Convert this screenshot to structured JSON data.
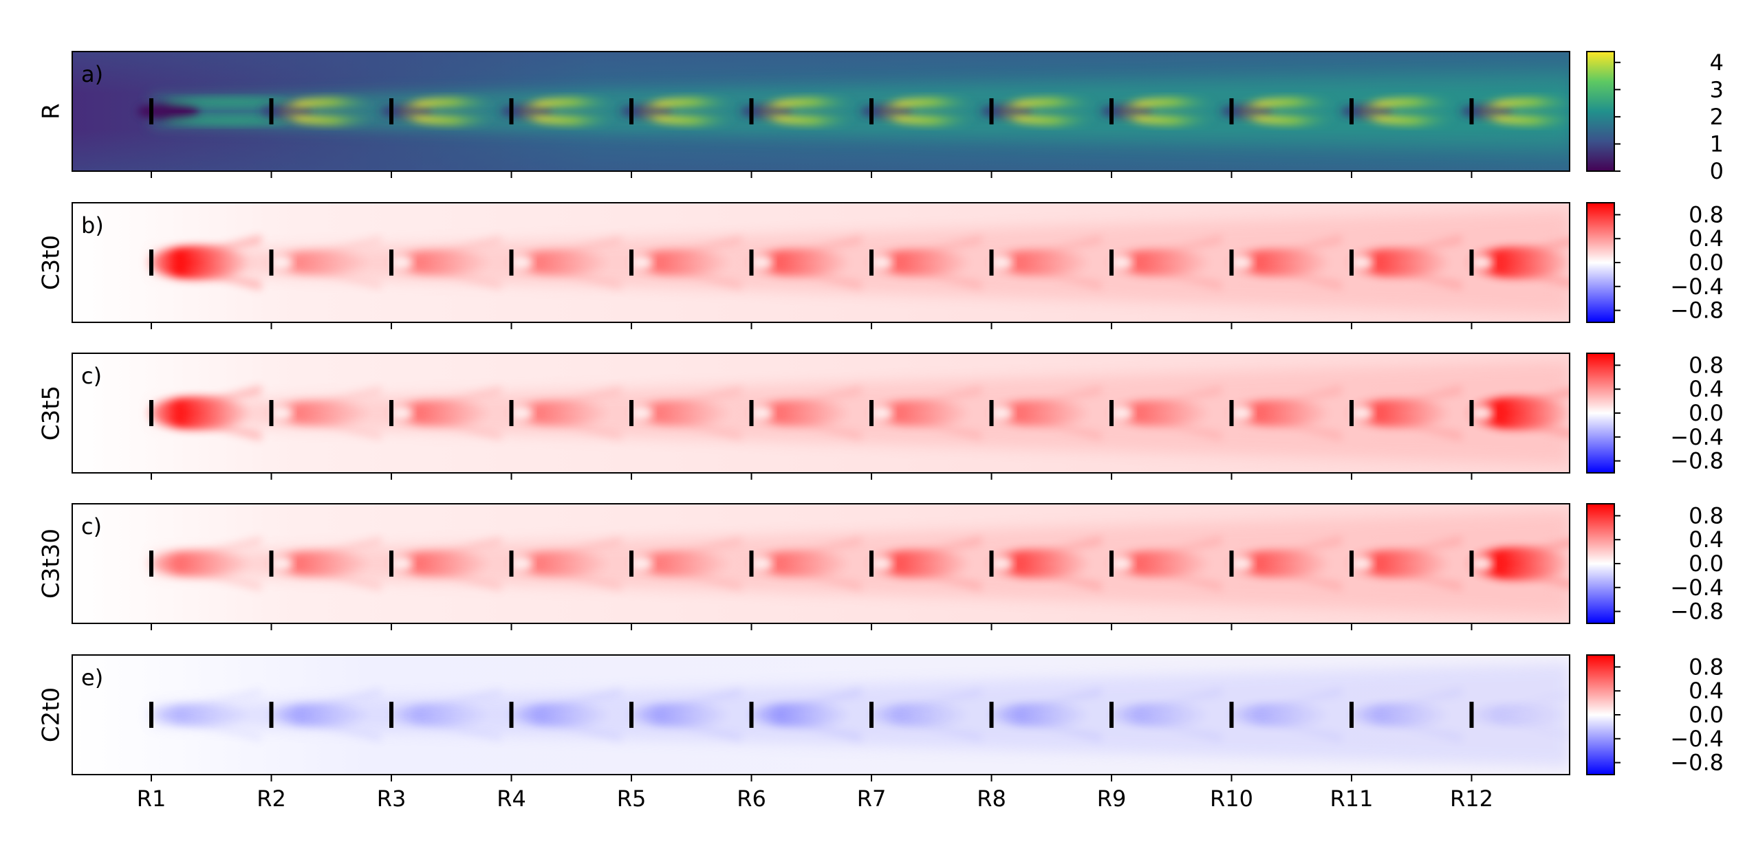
{
  "chart_data": [
    {
      "type": "heatmap",
      "panel_label": "a)",
      "ylabel": "R",
      "colormap": "viridis",
      "colorbar_ticks": [
        "0",
        "1",
        "2",
        "3",
        "4"
      ],
      "colorbar_range": [
        0,
        4.4
      ],
      "colorbar_tick_values": [
        0,
        1,
        2,
        3,
        4
      ],
      "rotor_labels": [
        "R1",
        "R2",
        "R3",
        "R4",
        "R5",
        "R6",
        "R7",
        "R8",
        "R9",
        "R10",
        "R11",
        "R12"
      ],
      "x_tick_labels_visible": false
    },
    {
      "type": "heatmap",
      "panel_label": "b)",
      "ylabel": "C3t0",
      "colormap": "bwr",
      "colorbar_ticks": [
        "0.8",
        "0.4",
        "0.0",
        "−0.4",
        "−0.8"
      ],
      "colorbar_tick_values": [
        0.8,
        0.4,
        0.0,
        -0.4,
        -0.8
      ],
      "colorbar_range": [
        -1,
        1
      ],
      "wake_strength": [
        1.0,
        0.35,
        0.4,
        0.4,
        0.45,
        0.55,
        0.5,
        0.45,
        0.5,
        0.55,
        0.65,
        0.85
      ],
      "x_tick_labels_visible": false
    },
    {
      "type": "heatmap",
      "panel_label": "c)",
      "ylabel": "C3t5",
      "colormap": "bwr",
      "colorbar_ticks": [
        "0.8",
        "0.4",
        "0.0",
        "−0.4",
        "−0.8"
      ],
      "colorbar_tick_values": [
        0.8,
        0.4,
        0.0,
        -0.4,
        -0.8
      ],
      "colorbar_range": [
        -1,
        1
      ],
      "wake_strength": [
        0.95,
        0.4,
        0.45,
        0.4,
        0.4,
        0.45,
        0.45,
        0.45,
        0.45,
        0.5,
        0.6,
        0.95
      ],
      "x_tick_labels_visible": false
    },
    {
      "type": "heatmap",
      "panel_label": "c)",
      "ylabel": "C3t30",
      "colormap": "bwr",
      "colorbar_ticks": [
        "0.8",
        "0.4",
        "0.0",
        "−0.4",
        "−0.8"
      ],
      "colorbar_tick_values": [
        0.8,
        0.4,
        0.0,
        -0.4,
        -0.8
      ],
      "colorbar_range": [
        -1,
        1
      ],
      "wake_strength": [
        0.5,
        0.45,
        0.45,
        0.4,
        0.4,
        0.45,
        0.6,
        0.65,
        0.5,
        0.55,
        0.6,
        0.95
      ],
      "x_tick_labels_visible": false
    },
    {
      "type": "heatmap",
      "panel_label": "e)",
      "ylabel": "C2t0",
      "colormap": "bwr",
      "colorbar_ticks": [
        "0.8",
        "0.4",
        "0.0",
        "−0.4",
        "−0.8"
      ],
      "colorbar_tick_values": [
        0.8,
        0.4,
        0.0,
        -0.4,
        -0.8
      ],
      "colorbar_range": [
        -1,
        1
      ],
      "wake_strength": [
        -0.2,
        -0.25,
        -0.2,
        -0.25,
        -0.25,
        -0.3,
        -0.2,
        -0.25,
        -0.2,
        -0.2,
        -0.2,
        -0.1
      ],
      "x_tick_labels_visible": true
    }
  ]
}
